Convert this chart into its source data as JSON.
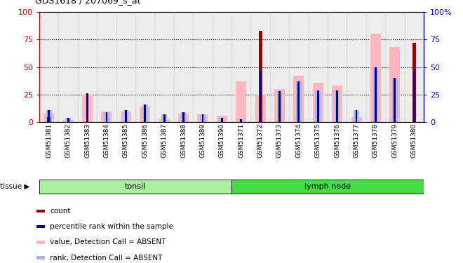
{
  "title": "GDS1618 / 207069_s_at",
  "samples": [
    "GSM51381",
    "GSM51382",
    "GSM51383",
    "GSM51384",
    "GSM51385",
    "GSM51386",
    "GSM51387",
    "GSM51388",
    "GSM51389",
    "GSM51390",
    "GSM51371",
    "GSM51372",
    "GSM51373",
    "GSM51374",
    "GSM51375",
    "GSM51376",
    "GSM51377",
    "GSM51378",
    "GSM51379",
    "GSM51380"
  ],
  "count_values": [
    5,
    0,
    0,
    0,
    0,
    0,
    0,
    0,
    0,
    0,
    0,
    83,
    0,
    0,
    0,
    0,
    0,
    0,
    0,
    72
  ],
  "percentile_values": [
    11,
    4,
    26,
    9,
    11,
    16,
    7,
    9,
    7,
    4,
    3,
    47,
    28,
    37,
    29,
    29,
    11,
    50,
    40,
    47
  ],
  "value_absent": [
    8,
    2,
    25,
    10,
    10,
    14,
    3,
    8,
    7,
    6,
    37,
    25,
    30,
    42,
    36,
    33,
    5,
    80,
    68,
    0
  ],
  "rank_absent": [
    11,
    4,
    0,
    9,
    11,
    16,
    7,
    9,
    7,
    4,
    3,
    0,
    28,
    37,
    29,
    29,
    11,
    50,
    40,
    0
  ],
  "tissue_groups": [
    {
      "label": "tonsil",
      "start": 0,
      "end": 10
    },
    {
      "label": "lymph node",
      "start": 10,
      "end": 20
    }
  ],
  "colors": {
    "count": "#990000",
    "percentile": "#000099",
    "value_absent": "#FFB6C1",
    "rank_absent": "#AABBDD",
    "tonsil_bg": "#AAEEA0",
    "lymph_bg": "#44DD44",
    "axis_left": "#CC0000",
    "axis_right": "#0000CC"
  },
  "ylim": [
    0,
    100
  ],
  "yticks": [
    0,
    25,
    50,
    75,
    100
  ]
}
